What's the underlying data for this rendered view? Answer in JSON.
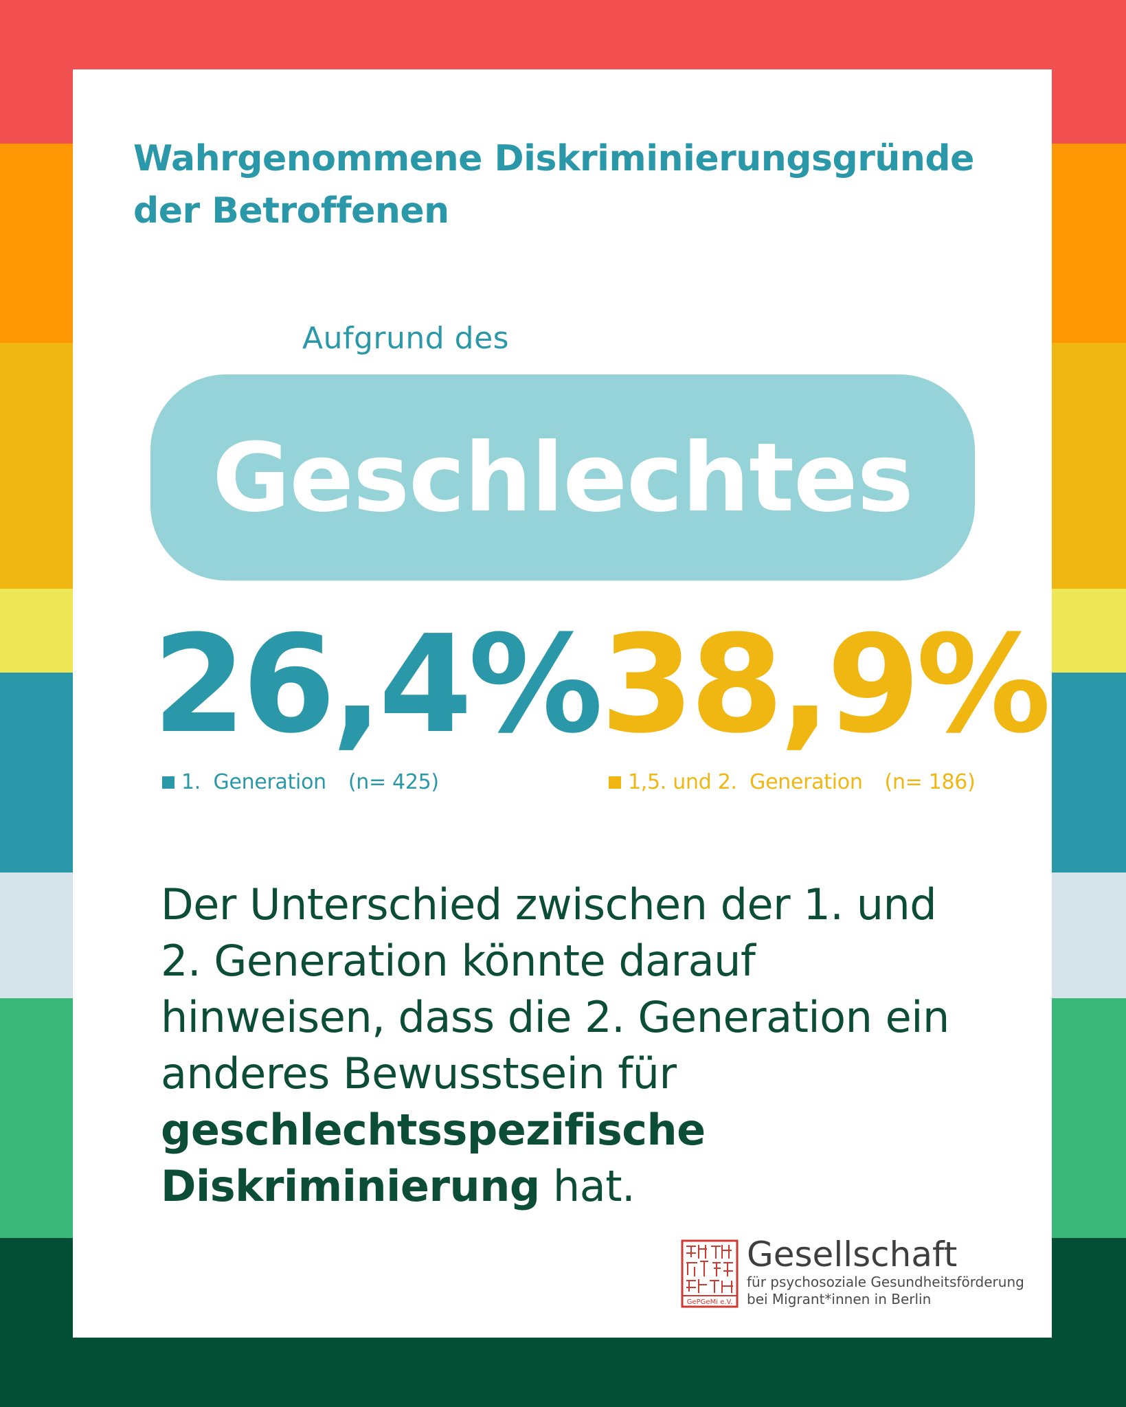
{
  "colors": {
    "stripes": [
      "#f24f51",
      "#fd9804",
      "#f0b712",
      "#eee856",
      "#2a98a8",
      "#d7e3ea",
      "#3ab87a",
      "#034f35"
    ],
    "teal": "#2a98a8",
    "yellow": "#f0b712",
    "pill": "#96d3d9",
    "dark_green": "#0b4d36",
    "seal_red": "#d0392f"
  },
  "headline": {
    "line1": "Wahrgenommene Diskriminierungsgründe",
    "line2": "der Betroffenen"
  },
  "pre_label": "Aufgrund des",
  "pill_word": "Geschlechtes",
  "stats": [
    {
      "value": "26,4%",
      "group": "1.  Generation",
      "n": "(n= 425)"
    },
    {
      "value": "38,9%",
      "group": "1,5. und 2.  Generation",
      "n": "(n= 186)"
    }
  ],
  "body": {
    "part1": "Der Unterschied zwischen der 1. und 2. Generation könnte darauf hinweisen, dass die 2. Generation ein anderes Bewusstsein für ",
    "bold": "geschlechtsspezifische Diskriminierung",
    "part2": " hat."
  },
  "logo": {
    "icon": "seal-stamp-icon",
    "seal_caption": "GePGeMi e.V.",
    "name": "Gesellschaft",
    "line1": "für psychosoziale Gesundheitsförderung",
    "line2": "bei Migrant*innen in Berlin"
  }
}
